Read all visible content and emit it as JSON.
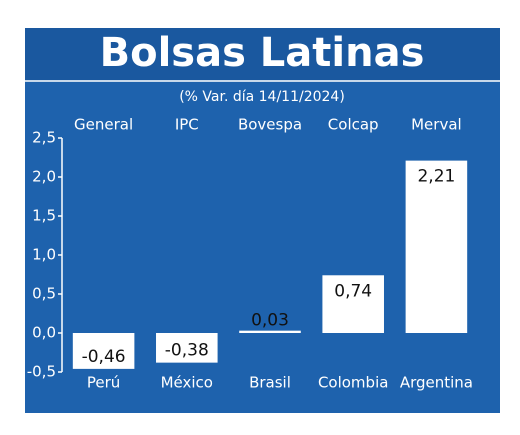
{
  "chart_data": {
    "type": "bar",
    "title": "Bolsas Latinas",
    "subtitle": "(% Var. día 14/11/2024)",
    "index_names": [
      "General",
      "IPC",
      "Bovespa",
      "Colcap",
      "Merval"
    ],
    "categories": [
      "Perú",
      "México",
      "Brasil",
      "Colombia",
      "Argentina"
    ],
    "values": [
      -0.46,
      -0.38,
      0.03,
      0.74,
      2.21
    ],
    "value_labels": [
      "-0,46",
      "-0,38",
      "0,03",
      "0,74",
      "2,21"
    ],
    "color": "#ffffff",
    "ylim": [
      -0.5,
      2.5
    ],
    "yticks": [
      {
        "value": -0.5,
        "label": "-0,5"
      },
      {
        "value": 0,
        "label": "0,0"
      },
      {
        "value": 0.5,
        "label": "0,5"
      },
      {
        "value": 1,
        "label": "1,0"
      },
      {
        "value": 1.5,
        "label": "1,5"
      },
      {
        "value": 2,
        "label": "2,0"
      },
      {
        "value": 2.5,
        "label": "2,5"
      }
    ]
  }
}
